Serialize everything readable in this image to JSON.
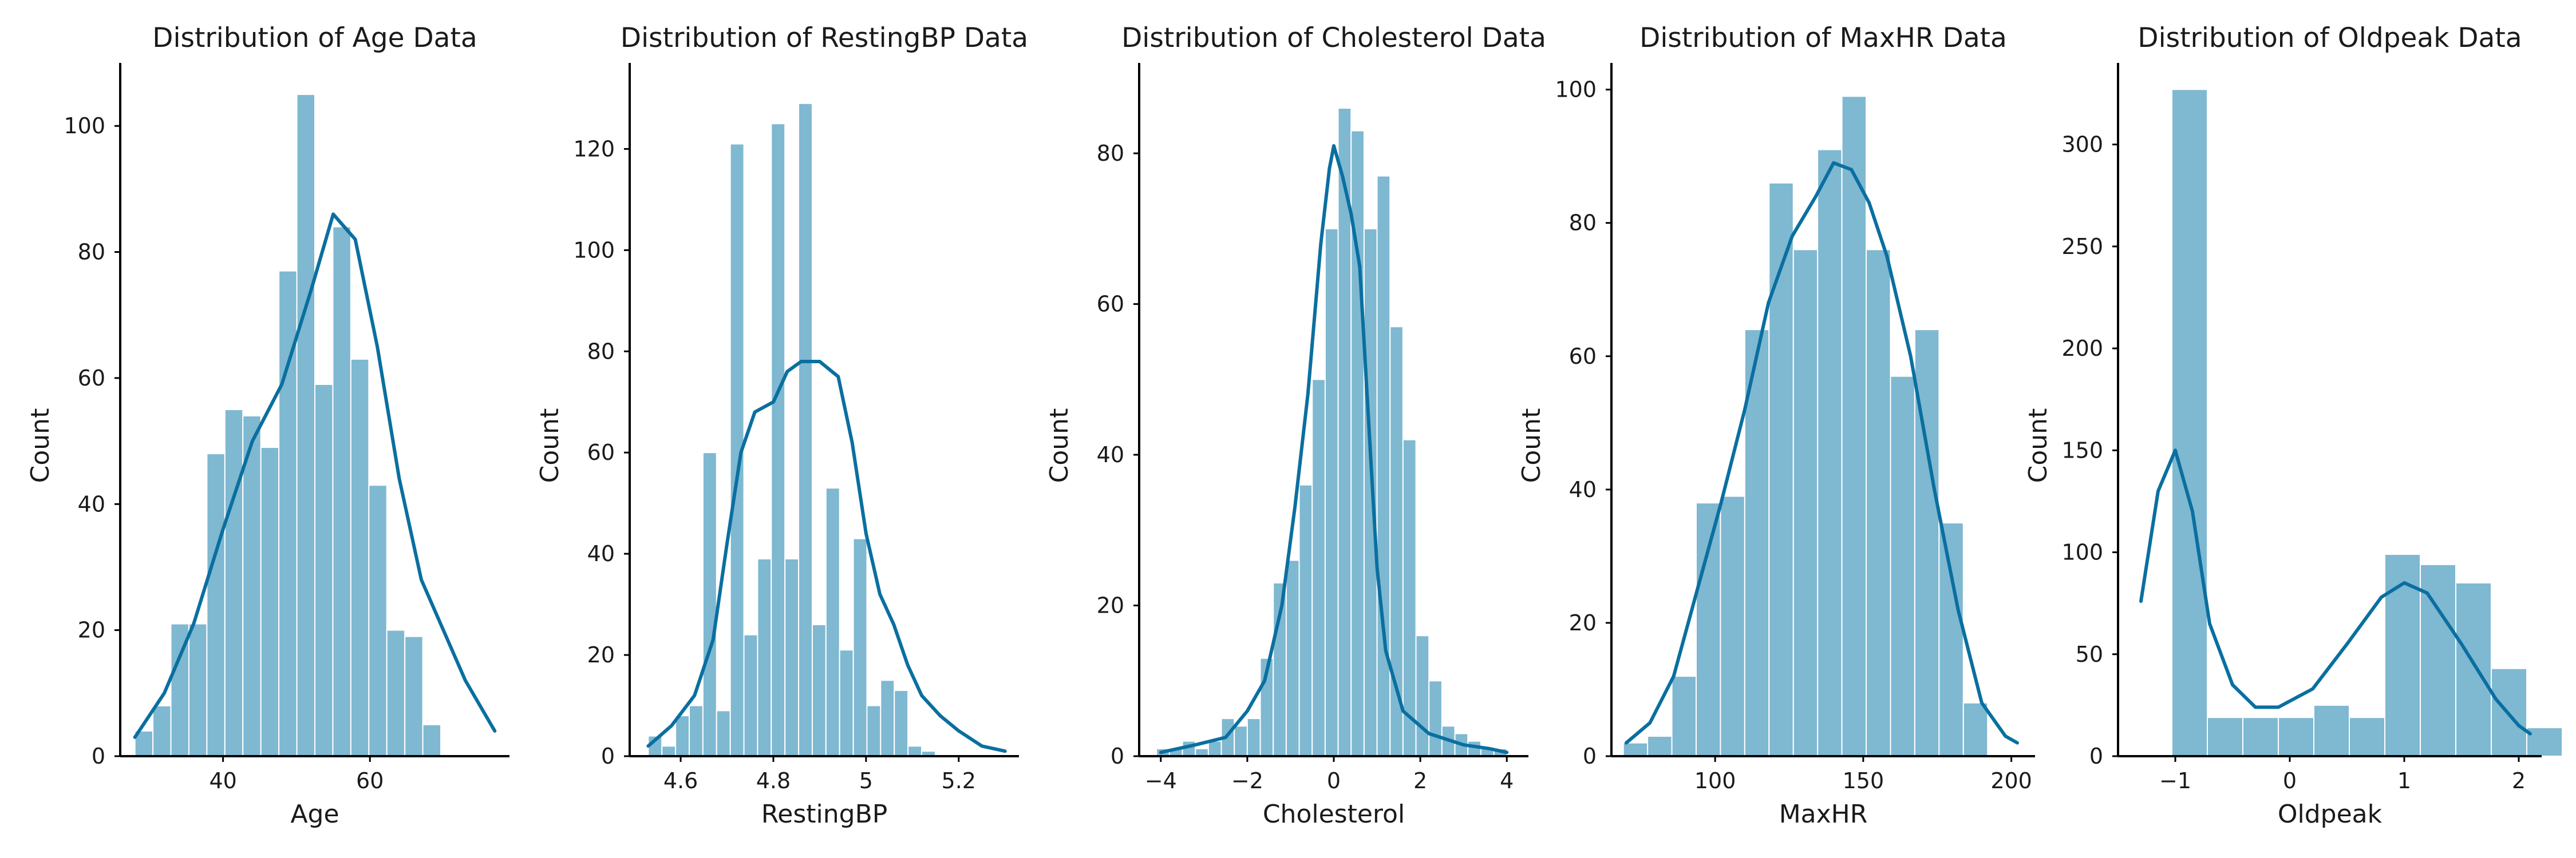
{
  "chart_data": [
    {
      "type": "bar",
      "title": "Distribution of Age Data",
      "xlabel": "Age",
      "ylabel": "Count",
      "xlim": [
        26,
        79
      ],
      "ylim": [
        0,
        110
      ],
      "xticks": [
        40,
        60
      ],
      "yticks": [
        0,
        20,
        40,
        60,
        80,
        100
      ],
      "bins": {
        "start": 28,
        "width": 2.45,
        "counts": [
          4,
          8,
          21,
          21,
          48,
          55,
          54,
          49,
          77,
          105,
          59,
          84,
          63,
          43,
          20,
          19,
          5
        ]
      },
      "kde": [
        [
          28,
          3
        ],
        [
          32,
          10
        ],
        [
          36,
          21
        ],
        [
          40,
          36
        ],
        [
          44,
          50
        ],
        [
          48,
          59
        ],
        [
          52,
          74
        ],
        [
          55,
          86
        ],
        [
          58,
          82
        ],
        [
          61,
          65
        ],
        [
          64,
          44
        ],
        [
          67,
          28
        ],
        [
          70,
          20
        ],
        [
          73,
          12
        ],
        [
          77,
          4
        ]
      ]
    },
    {
      "type": "bar",
      "title": "Distribution of RestingBP Data",
      "xlabel": "RestingBP",
      "ylabel": "Count",
      "xlim": [
        4.49,
        5.33
      ],
      "ylim": [
        0,
        137
      ],
      "xticks": [
        4.6,
        4.8,
        5.0,
        5.2
      ],
      "yticks": [
        0,
        20,
        40,
        60,
        80,
        100,
        120
      ],
      "bins": {
        "start": 4.53,
        "width": 0.0295,
        "counts": [
          4,
          2,
          8,
          10,
          60,
          9,
          121,
          24,
          39,
          125,
          39,
          129,
          26,
          53,
          21,
          43,
          10,
          15,
          13,
          2,
          1,
          0,
          0,
          0,
          0
        ]
      },
      "kde": [
        [
          4.53,
          2
        ],
        [
          4.58,
          6
        ],
        [
          4.63,
          12
        ],
        [
          4.67,
          23
        ],
        [
          4.7,
          42
        ],
        [
          4.73,
          60
        ],
        [
          4.76,
          68
        ],
        [
          4.8,
          70
        ],
        [
          4.83,
          76
        ],
        [
          4.86,
          78
        ],
        [
          4.9,
          78
        ],
        [
          4.94,
          75
        ],
        [
          4.97,
          62
        ],
        [
          5.0,
          44
        ],
        [
          5.03,
          32
        ],
        [
          5.06,
          26
        ],
        [
          5.09,
          18
        ],
        [
          5.12,
          12
        ],
        [
          5.16,
          8
        ],
        [
          5.2,
          5
        ],
        [
          5.25,
          2
        ],
        [
          5.3,
          1
        ]
      ]
    },
    {
      "type": "bar",
      "title": "Distribution of Cholesterol Data",
      "xlabel": "Cholesterol",
      "ylabel": "Count",
      "xlim": [
        -4.5,
        4.5
      ],
      "ylim": [
        0,
        92
      ],
      "xticks": [
        -4,
        -2,
        0,
        2,
        4
      ],
      "yticks": [
        0,
        20,
        40,
        60,
        80
      ],
      "bins": {
        "start": -4.1,
        "width": 0.3,
        "counts": [
          1,
          1,
          2,
          1,
          2,
          5,
          4,
          5,
          13,
          23,
          26,
          36,
          50,
          70,
          86,
          83,
          70,
          77,
          57,
          42,
          16,
          10,
          4,
          3,
          2,
          1,
          1,
          0
        ]
      },
      "kde": [
        [
          -4,
          0.5
        ],
        [
          -3.2,
          1.5
        ],
        [
          -2.5,
          2.5
        ],
        [
          -2,
          6
        ],
        [
          -1.6,
          10
        ],
        [
          -1.2,
          20
        ],
        [
          -0.9,
          33
        ],
        [
          -0.6,
          48
        ],
        [
          -0.3,
          68
        ],
        [
          -0.1,
          78
        ],
        [
          0,
          81
        ],
        [
          0.2,
          77
        ],
        [
          0.4,
          72
        ],
        [
          0.6,
          65
        ],
        [
          0.8,
          45
        ],
        [
          1,
          25
        ],
        [
          1.2,
          14
        ],
        [
          1.6,
          6
        ],
        [
          2.2,
          3
        ],
        [
          3,
          1.5
        ],
        [
          3.6,
          1
        ],
        [
          4,
          0.5
        ]
      ]
    },
    {
      "type": "bar",
      "title": "Distribution of MaxHR Data",
      "xlabel": "MaxHR",
      "ylabel": "Count",
      "xlim": [
        65,
        208
      ],
      "ylim": [
        0,
        104
      ],
      "xticks": [
        100,
        150,
        200
      ],
      "yticks": [
        0,
        20,
        40,
        60,
        80,
        100
      ],
      "bins": {
        "start": 69,
        "width": 8.2,
        "counts": [
          2,
          3,
          12,
          38,
          39,
          64,
          86,
          76,
          91,
          99,
          76,
          57,
          64,
          35,
          8
        ]
      },
      "kde": [
        [
          70,
          2
        ],
        [
          78,
          5
        ],
        [
          86,
          12
        ],
        [
          94,
          25
        ],
        [
          102,
          38
        ],
        [
          110,
          52
        ],
        [
          118,
          68
        ],
        [
          126,
          78
        ],
        [
          134,
          84
        ],
        [
          140,
          89
        ],
        [
          146,
          88
        ],
        [
          152,
          83
        ],
        [
          158,
          75
        ],
        [
          166,
          60
        ],
        [
          174,
          40
        ],
        [
          182,
          22
        ],
        [
          190,
          8
        ],
        [
          198,
          3
        ],
        [
          202,
          2
        ]
      ]
    },
    {
      "type": "bar",
      "title": "Distribution of Oldpeak Data",
      "xlabel": "Oldpeak",
      "ylabel": "Count",
      "xlim": [
        -1.5,
        2.2
      ],
      "ylim": [
        0,
        340
      ],
      "xticks": [
        -1,
        0,
        1,
        2
      ],
      "yticks": [
        0,
        50,
        100,
        150,
        200,
        250,
        300
      ],
      "bins": {
        "start": -1.34,
        "width": 0.31,
        "counts": [
          0,
          327,
          19,
          19,
          19,
          25,
          19,
          99,
          94,
          85,
          43,
          14
        ]
      },
      "kde": [
        [
          -1.3,
          76
        ],
        [
          -1.15,
          130
        ],
        [
          -1,
          150
        ],
        [
          -0.85,
          120
        ],
        [
          -0.7,
          65
        ],
        [
          -0.5,
          35
        ],
        [
          -0.3,
          24
        ],
        [
          -0.1,
          24
        ],
        [
          0.2,
          33
        ],
        [
          0.5,
          55
        ],
        [
          0.8,
          78
        ],
        [
          1,
          85
        ],
        [
          1.2,
          80
        ],
        [
          1.5,
          55
        ],
        [
          1.8,
          28
        ],
        [
          2,
          15
        ],
        [
          2.1,
          11
        ]
      ]
    }
  ]
}
